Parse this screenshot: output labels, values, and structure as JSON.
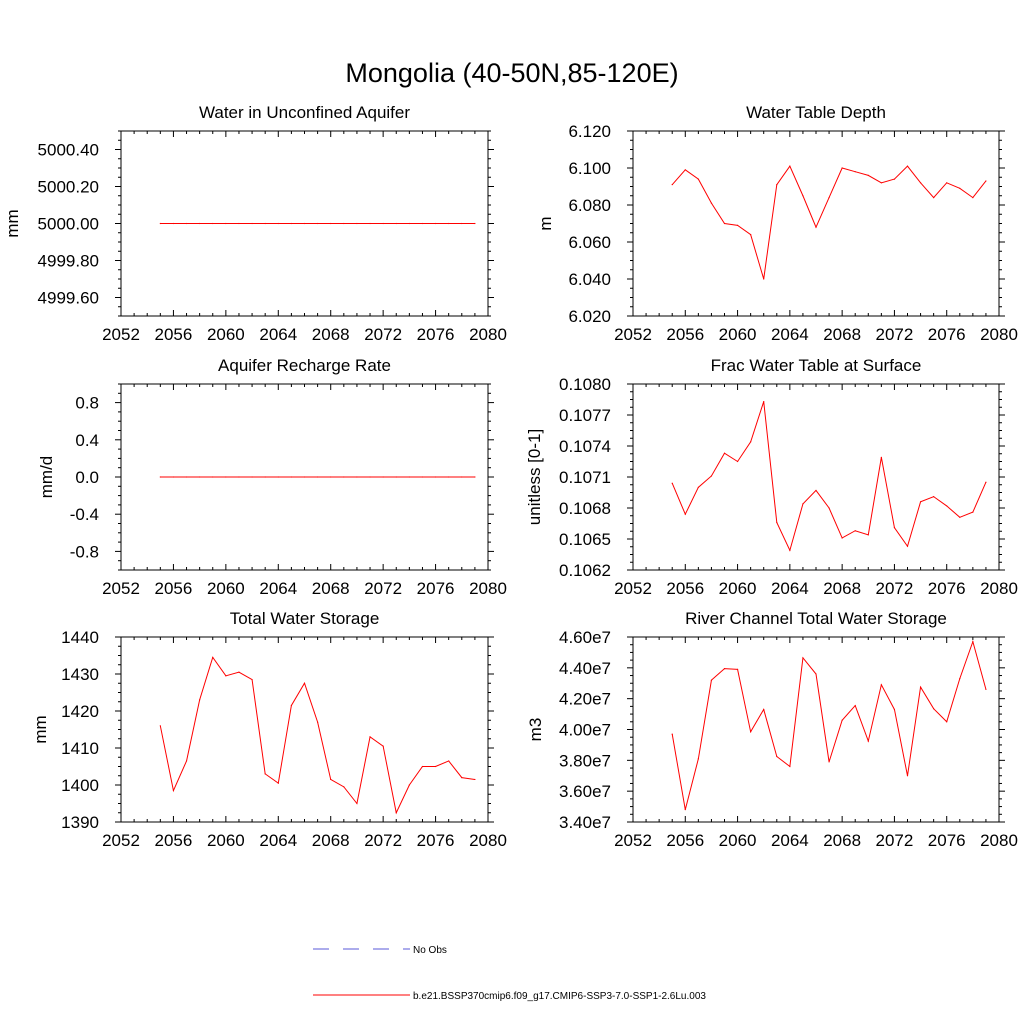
{
  "figure_title": "Mongolia (40-50N,85-120E)",
  "legend": {
    "obs_label": "No Obs",
    "model_label": "b.e21.BSSP370cmip6.f09_g17.CMIP6-SSP3-7.0-SSP1-2.6Lu.003",
    "obs_color": "#5a5ad8",
    "model_color": "#ff0000"
  },
  "chart_data": [
    {
      "id": "water-unconfined-aquifer",
      "type": "line",
      "title": "Water in Unconfined Aquifer",
      "xlabel": "",
      "ylabel": "mm",
      "xlim": [
        2052,
        2080
      ],
      "ylim": [
        4999.5,
        5000.5
      ],
      "xticks": [
        "2052",
        "2056",
        "2060",
        "2064",
        "2068",
        "2072",
        "2076",
        "2080"
      ],
      "yticks": [
        "4999.60",
        "4999.80",
        "5000.00",
        "5000.20",
        "5000.40"
      ],
      "x": [
        2055,
        2056,
        2057,
        2058,
        2059,
        2060,
        2061,
        2062,
        2063,
        2064,
        2065,
        2066,
        2067,
        2068,
        2069,
        2070,
        2071,
        2072,
        2073,
        2074,
        2075,
        2076,
        2077,
        2078,
        2079
      ],
      "series": [
        {
          "values": [
            5000,
            5000,
            5000,
            5000,
            5000,
            5000,
            5000,
            5000,
            5000,
            5000,
            5000,
            5000,
            5000,
            5000,
            5000,
            5000,
            5000,
            5000,
            5000,
            5000,
            5000,
            5000,
            5000,
            5000,
            5000
          ]
        }
      ]
    },
    {
      "id": "water-table-depth",
      "type": "line",
      "title": "Water Table Depth",
      "xlabel": "",
      "ylabel": "m",
      "xlim": [
        2052,
        2080
      ],
      "ylim": [
        6.02,
        6.12
      ],
      "xticks": [
        "2052",
        "2056",
        "2060",
        "2064",
        "2068",
        "2072",
        "2076",
        "2080"
      ],
      "yticks": [
        "6.020",
        "6.040",
        "6.060",
        "6.080",
        "6.100",
        "6.120"
      ],
      "x": [
        2055,
        2056,
        2057,
        2058,
        2059,
        2060,
        2061,
        2062,
        2063,
        2064,
        2065,
        2066,
        2067,
        2068,
        2069,
        2070,
        2071,
        2072,
        2073,
        2074,
        2075,
        2076,
        2077,
        2078,
        2079
      ],
      "series": [
        {
          "values": [
            6.091,
            6.099,
            6.094,
            6.081,
            6.07,
            6.069,
            6.064,
            6.04,
            6.091,
            6.101,
            6.085,
            6.068,
            6.084,
            6.1,
            6.098,
            6.096,
            6.092,
            6.094,
            6.101,
            6.092,
            6.084,
            6.092,
            6.089,
            6.084,
            6.093
          ]
        }
      ]
    },
    {
      "id": "aquifer-recharge-rate",
      "type": "line",
      "title": "Aquifer Recharge Rate",
      "xlabel": "",
      "ylabel": "mm/d",
      "xlim": [
        2052,
        2080
      ],
      "ylim": [
        -1.0,
        1.0
      ],
      "xticks": [
        "2052",
        "2056",
        "2060",
        "2064",
        "2068",
        "2072",
        "2076",
        "2080"
      ],
      "yticks": [
        "-0.8",
        "-0.4",
        "0.0",
        "0.4",
        "0.8"
      ],
      "x": [
        2055,
        2056,
        2057,
        2058,
        2059,
        2060,
        2061,
        2062,
        2063,
        2064,
        2065,
        2066,
        2067,
        2068,
        2069,
        2070,
        2071,
        2072,
        2073,
        2074,
        2075,
        2076,
        2077,
        2078,
        2079
      ],
      "series": [
        {
          "values": [
            0,
            0,
            0,
            0,
            0,
            0,
            0,
            0,
            0,
            0,
            0,
            0,
            0,
            0,
            0,
            0,
            0,
            0,
            0,
            0,
            0,
            0,
            0,
            0,
            0
          ]
        }
      ]
    },
    {
      "id": "frac-water-table-surface",
      "type": "line",
      "title": "Frac Water Table at Surface",
      "xlabel": "",
      "ylabel": "unitless [0-1]",
      "xlim": [
        2052,
        2080
      ],
      "ylim": [
        0.1062,
        0.108
      ],
      "xticks": [
        "2052",
        "2056",
        "2060",
        "2064",
        "2068",
        "2072",
        "2076",
        "2080"
      ],
      "yticks": [
        "0.1062",
        "0.1065",
        "0.1068",
        "0.1071",
        "0.1074",
        "0.1077",
        "0.1080"
      ],
      "x": [
        2055,
        2056,
        2057,
        2058,
        2059,
        2060,
        2061,
        2062,
        2063,
        2064,
        2065,
        2066,
        2067,
        2068,
        2069,
        2070,
        2071,
        2072,
        2073,
        2074,
        2075,
        2076,
        2077,
        2078,
        2079
      ],
      "series": [
        {
          "values": [
            0.10704,
            0.10674,
            0.107,
            0.10711,
            0.10733,
            0.10725,
            0.10744,
            0.10783,
            0.10666,
            0.10639,
            0.10684,
            0.10697,
            0.1068,
            0.10651,
            0.10658,
            0.10654,
            0.10729,
            0.10661,
            0.10643,
            0.10686,
            0.10691,
            0.10682,
            0.10671,
            0.10676,
            0.10705
          ]
        }
      ]
    },
    {
      "id": "total-water-storage",
      "type": "line",
      "title": "Total Water Storage",
      "xlabel": "",
      "ylabel": "mm",
      "xlim": [
        2052,
        2080
      ],
      "ylim": [
        1390,
        1440
      ],
      "xticks": [
        "2052",
        "2056",
        "2060",
        "2064",
        "2068",
        "2072",
        "2076",
        "2080"
      ],
      "yticks": [
        "1390",
        "1400",
        "1410",
        "1420",
        "1430",
        "1440"
      ],
      "x": [
        2055,
        2056,
        2057,
        2058,
        2059,
        2060,
        2061,
        2062,
        2063,
        2064,
        2065,
        2066,
        2067,
        2068,
        2069,
        2070,
        2071,
        2072,
        2073,
        2074,
        2075,
        2076,
        2077,
        2078,
        2079
      ],
      "series": [
        {
          "values": [
            1416,
            1398.5,
            1406.5,
            1423,
            1434.5,
            1429.5,
            1430.5,
            1428.5,
            1403,
            1400.5,
            1421.5,
            1427.5,
            1417,
            1401.5,
            1399.5,
            1395,
            1413,
            1410.5,
            1392.5,
            1400,
            1405,
            1405,
            1406.5,
            1402,
            1401.5
          ]
        }
      ]
    },
    {
      "id": "river-channel-water-storage",
      "type": "line",
      "title": "River Channel Total Water Storage",
      "xlabel": "",
      "ylabel": "m3",
      "xlim": [
        2052,
        2080
      ],
      "ylim": [
        34000000,
        46000000
      ],
      "xticks": [
        "2052",
        "2056",
        "2060",
        "2064",
        "2068",
        "2072",
        "2076",
        "2080"
      ],
      "yticks": [
        "3.40e7",
        "3.60e7",
        "3.80e7",
        "4.00e7",
        "4.20e7",
        "4.40e7",
        "4.60e7"
      ],
      "x": [
        2055,
        2056,
        2057,
        2058,
        2059,
        2060,
        2061,
        2062,
        2063,
        2064,
        2065,
        2066,
        2067,
        2068,
        2069,
        2070,
        2071,
        2072,
        2073,
        2074,
        2075,
        2076,
        2077,
        2078,
        2079
      ],
      "series": [
        {
          "values": [
            39700000,
            34800000,
            38100000,
            43200000,
            43950000,
            43900000,
            39850000,
            41300000,
            38250000,
            37600000,
            44650000,
            43600000,
            37900000,
            40600000,
            41550000,
            39250000,
            42900000,
            41300000,
            37000000,
            42750000,
            41350000,
            40500000,
            43300000,
            45700000,
            42600000
          ]
        }
      ]
    }
  ]
}
